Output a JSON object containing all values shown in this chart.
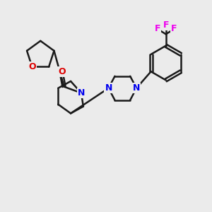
{
  "background_color": "#ebebeb",
  "bond_color": "#1a1a1a",
  "nitrogen_color": "#0000ee",
  "oxygen_color": "#dd0000",
  "fluorine_color": "#ee00ee",
  "bond_width": 1.8,
  "figure_size": [
    3.0,
    3.0
  ],
  "dpi": 100,
  "xlim": [
    0,
    10
  ],
  "ylim": [
    0,
    10
  ]
}
